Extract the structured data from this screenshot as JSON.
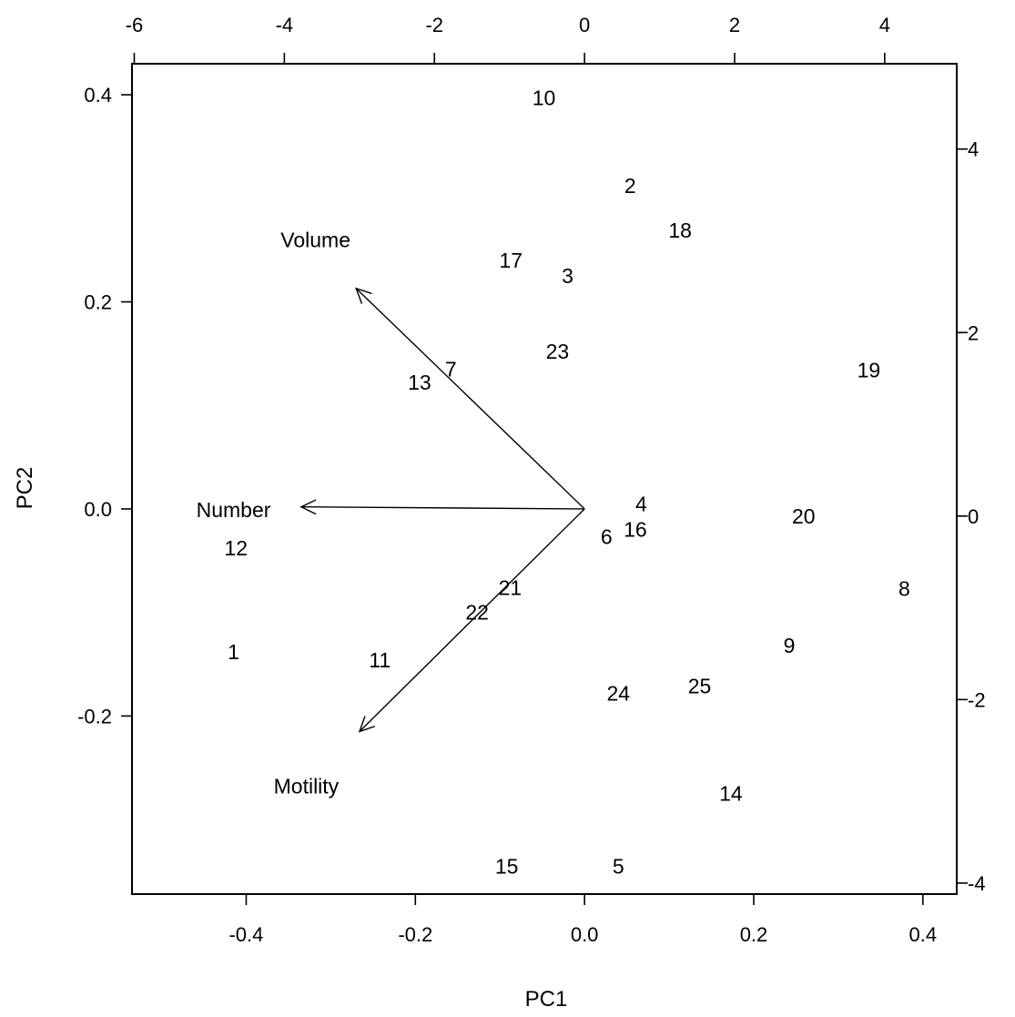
{
  "chart_data": {
    "type": "scatter",
    "title": "",
    "xlabel": "PC1",
    "ylabel": "PC2",
    "xlim": [
      -0.535,
      0.44
    ],
    "ylim": [
      -0.372,
      0.43
    ],
    "x_ticks": [
      -0.4,
      -0.2,
      0.0,
      0.2,
      0.4
    ],
    "x_tick_labels": [
      "-0.4",
      "-0.2",
      "0.0",
      "0.2",
      "0.4"
    ],
    "y_ticks": [
      -0.2,
      0.0,
      0.2,
      0.4
    ],
    "y_tick_labels": [
      "-0.2",
      "0.0",
      "0.2",
      "0.4"
    ],
    "top_axis": {
      "lim": [
        -6.03,
        4.96
      ],
      "ticks": [
        -6,
        -4,
        -2,
        0,
        2,
        4
      ],
      "tick_labels": [
        "-6",
        "-4",
        "-2",
        "0",
        "2",
        "4"
      ]
    },
    "right_axis": {
      "lim": [
        -4.12,
        4.93
      ],
      "ticks": [
        -4,
        -2,
        0,
        2,
        4
      ],
      "tick_labels": [
        "-4",
        "-2",
        "0",
        "2",
        "4"
      ]
    },
    "grid": false,
    "legend": "none",
    "points": [
      {
        "label": "1",
        "x": -0.415,
        "y": -0.138
      },
      {
        "label": "2",
        "x": 0.054,
        "y": 0.312
      },
      {
        "label": "3",
        "x": -0.02,
        "y": 0.225
      },
      {
        "label": "4",
        "x": 0.067,
        "y": 0.005
      },
      {
        "label": "5",
        "x": 0.04,
        "y": -0.345
      },
      {
        "label": "6",
        "x": 0.026,
        "y": -0.027
      },
      {
        "label": "7",
        "x": -0.158,
        "y": 0.135
      },
      {
        "label": "8",
        "x": 0.378,
        "y": -0.077
      },
      {
        "label": "9",
        "x": 0.242,
        "y": -0.132
      },
      {
        "label": "10",
        "x": -0.048,
        "y": 0.397
      },
      {
        "label": "11",
        "x": -0.242,
        "y": -0.146
      },
      {
        "label": "12",
        "x": -0.412,
        "y": -0.038
      },
      {
        "label": "13",
        "x": -0.195,
        "y": 0.122
      },
      {
        "label": "14",
        "x": 0.173,
        "y": -0.275
      },
      {
        "label": "15",
        "x": -0.092,
        "y": -0.345
      },
      {
        "label": "16",
        "x": 0.06,
        "y": -0.02
      },
      {
        "label": "17",
        "x": -0.087,
        "y": 0.24
      },
      {
        "label": "18",
        "x": 0.113,
        "y": 0.269
      },
      {
        "label": "19",
        "x": 0.336,
        "y": 0.134
      },
      {
        "label": "20",
        "x": 0.259,
        "y": -0.007
      },
      {
        "label": "21",
        "x": -0.088,
        "y": -0.076
      },
      {
        "label": "22",
        "x": -0.127,
        "y": -0.1
      },
      {
        "label": "23",
        "x": -0.032,
        "y": 0.152
      },
      {
        "label": "24",
        "x": 0.04,
        "y": -0.178
      },
      {
        "label": "25",
        "x": 0.136,
        "y": -0.171
      }
    ],
    "variables": [
      {
        "name": "Volume",
        "x": -0.27,
        "y": 0.213,
        "label_x": -0.318,
        "label_y": 0.26
      },
      {
        "name": "Number",
        "x": -0.335,
        "y": 0.002,
        "label_x": -0.415,
        "label_y": -0.001
      },
      {
        "name": "Motility",
        "x": -0.266,
        "y": -0.215,
        "label_x": -0.329,
        "label_y": -0.268
      }
    ]
  }
}
